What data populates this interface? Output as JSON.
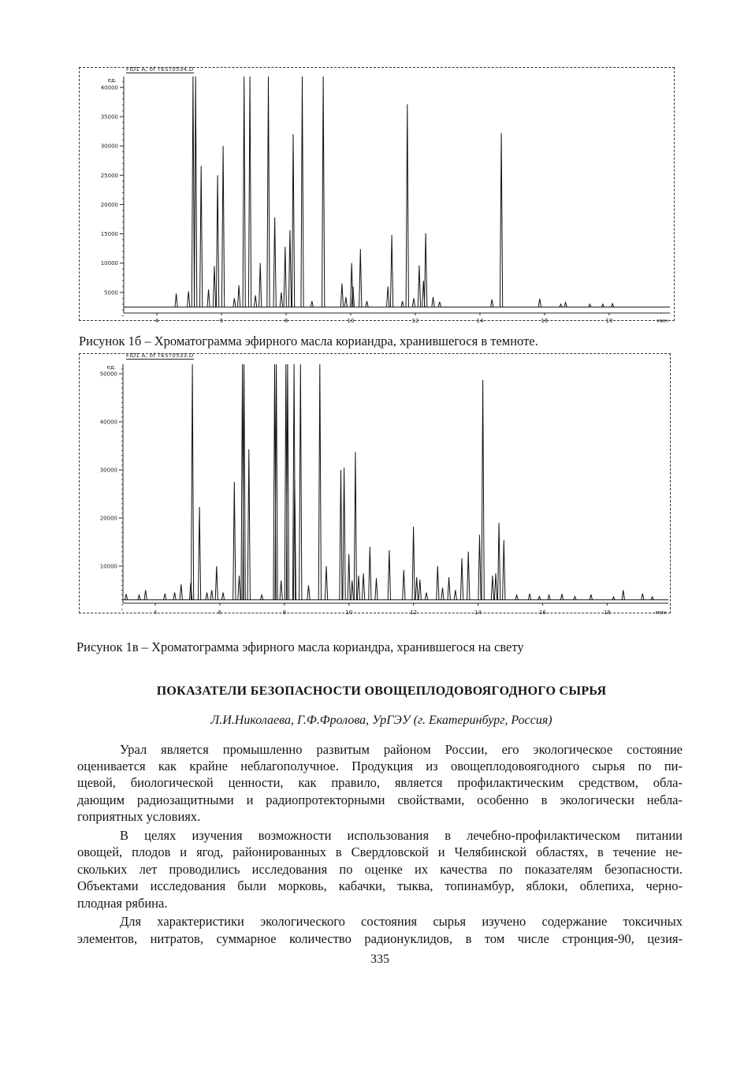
{
  "figure1": {
    "header": "FID1 A, of TEST0534.D",
    "y_unit": "ед.",
    "x_unit": "мин",
    "caption": "Рисунок 1б – Хроматограмма эфирного масла кориандра, хранившегося в темноте."
  },
  "figure2": {
    "header": "FID1 A, of TEST0533.D",
    "y_unit": "ед.",
    "x_unit": "мин",
    "caption": "Рисунок 1в – Хроматограмма эфирного масла кориандра, хранившегося  на свету"
  },
  "heading": "ПОКАЗАТЕЛИ БЕЗОПАСНОСТИ ОВОЩЕПЛОДОВОЯГОДНОГО СЫРЬЯ",
  "authors": "Л.И.Николаева, Г.Ф.Фролова, УрГЭУ (г. Екатеринбург, Россия)",
  "paragraphs": [
    [
      "Урал является промышленно развитым районом России, его экологическое состояние",
      "оценивается как крайне неблагополучное. Продукция из овощеплодовоягодного сырья по пи-",
      "щевой, биологической ценности, как правило, является профилактическим средством, обла-",
      "дающим радиозащитными и радиопротекторными свойствами, особенно в экологически небла-",
      "гоприятных условиях."
    ],
    [
      "В целях изучения возможности использования в лечебно-профилактическом питании",
      "овощей, плодов и ягод, районированных в Свердловской и Челябинской областях, в течение не-",
      "скольких лет проводились исследования по оценке их качества по показателям безопасности.",
      "Объектами исследования были морковь, кабачки, тыква, топинамбур, яблоки, облепиха, черно-",
      "плодная рябина."
    ],
    [
      "Для характеристики экологического состояния сырья изучено содержание токсичных",
      "элементов, нитратов, суммарное количество радионуклидов, в том числе стронция-90, цезия-"
    ]
  ],
  "page_number": "335",
  "chart_data": [
    {
      "type": "line",
      "title": "",
      "xlabel": "мин",
      "ylabel": "ед.",
      "xlim": [
        3.0,
        19.9
      ],
      "ylim": [
        0,
        42000
      ],
      "x_ticks": [
        "4",
        "6",
        "8",
        "10",
        "12",
        "14",
        "16",
        "18"
      ],
      "y_ticks": [
        "5000",
        "10000",
        "15000",
        "20000",
        "25000",
        "30000",
        "35000",
        "40000"
      ],
      "grid": false,
      "baseline": 2500,
      "series": [
        {
          "peaks": [
            [
              4.6,
              4800
            ],
            [
              4.98,
              5200
            ],
            [
              5.12,
              45000
            ],
            [
              5.2,
              45000
            ],
            [
              5.37,
              26600
            ],
            [
              5.6,
              5500
            ],
            [
              5.78,
              9500
            ],
            [
              5.88,
              25000
            ],
            [
              6.05,
              30000
            ],
            [
              6.4,
              4000
            ],
            [
              6.54,
              6200
            ],
            [
              6.7,
              45000
            ],
            [
              6.88,
              45000
            ],
            [
              7.05,
              4500
            ],
            [
              7.2,
              10000
            ],
            [
              7.45,
              45000
            ],
            [
              7.65,
              17800
            ],
            [
              7.85,
              5000
            ],
            [
              7.97,
              12800
            ],
            [
              8.12,
              15600
            ],
            [
              8.22,
              32000
            ],
            [
              8.5,
              45000
            ],
            [
              8.8,
              3500
            ],
            [
              9.15,
              45000
            ],
            [
              9.73,
              6500
            ],
            [
              9.85,
              4200
            ],
            [
              10.03,
              10000
            ],
            [
              10.07,
              6000
            ],
            [
              10.3,
              12400
            ],
            [
              10.5,
              3500
            ],
            [
              11.15,
              6000
            ],
            [
              11.27,
              14800
            ],
            [
              11.6,
              3500
            ],
            [
              11.75,
              37100
            ],
            [
              11.95,
              4000
            ],
            [
              12.12,
              9600
            ],
            [
              12.25,
              7000
            ],
            [
              12.32,
              15100
            ],
            [
              12.55,
              4200
            ],
            [
              12.75,
              3400
            ],
            [
              14.37,
              3800
            ],
            [
              14.66,
              32200
            ],
            [
              15.85,
              3900
            ],
            [
              16.5,
              3000
            ],
            [
              16.65,
              3300
            ],
            [
              17.4,
              3000
            ],
            [
              17.8,
              3000
            ],
            [
              18.1,
              3100
            ]
          ]
        }
      ]
    },
    {
      "type": "line",
      "title": "",
      "xlabel": "мин",
      "ylabel": "ед.",
      "xlim": [
        3.0,
        19.9
      ],
      "ylim": [
        0,
        52000
      ],
      "x_ticks": [
        "4",
        "6",
        "8",
        "10",
        "12",
        "14",
        "16",
        "18"
      ],
      "y_ticks": [
        "10000",
        "20000",
        "30000",
        "40000",
        "50000"
      ],
      "grid": false,
      "baseline": 3000,
      "series": [
        {
          "peaks": [
            [
              3.1,
              4200
            ],
            [
              3.5,
              4000
            ],
            [
              3.7,
              5000
            ],
            [
              4.3,
              4300
            ],
            [
              4.6,
              4500
            ],
            [
              4.8,
              6200
            ],
            [
              5.1,
              6500
            ],
            [
              5.15,
              60000
            ],
            [
              5.37,
              22300
            ],
            [
              5.6,
              4500
            ],
            [
              5.75,
              5000
            ],
            [
              5.9,
              10000
            ],
            [
              6.1,
              4500
            ],
            [
              6.45,
              27500
            ],
            [
              6.6,
              8000
            ],
            [
              6.7,
              60000
            ],
            [
              6.75,
              60000
            ],
            [
              6.9,
              34300
            ],
            [
              7.3,
              4000
            ],
            [
              7.7,
              60000
            ],
            [
              7.75,
              60000
            ],
            [
              7.9,
              7000
            ],
            [
              8.05,
              60000
            ],
            [
              8.1,
              60000
            ],
            [
              8.3,
              60000
            ],
            [
              8.32,
              28000
            ],
            [
              8.5,
              60000
            ],
            [
              8.75,
              6000
            ],
            [
              9.1,
              60000
            ],
            [
              9.3,
              10000
            ],
            [
              9.75,
              30000
            ],
            [
              9.85,
              30500
            ],
            [
              10.0,
              12500
            ],
            [
              10.1,
              7000
            ],
            [
              10.2,
              33700
            ],
            [
              10.3,
              8000
            ],
            [
              10.45,
              8500
            ],
            [
              10.65,
              14000
            ],
            [
              10.85,
              7500
            ],
            [
              11.25,
              13300
            ],
            [
              11.7,
              9200
            ],
            [
              12.0,
              18200
            ],
            [
              12.1,
              7700
            ],
            [
              12.2,
              7200
            ],
            [
              12.4,
              4500
            ],
            [
              12.75,
              10000
            ],
            [
              12.9,
              5500
            ],
            [
              13.1,
              7700
            ],
            [
              13.3,
              5000
            ],
            [
              13.5,
              11600
            ],
            [
              13.7,
              13000
            ],
            [
              14.05,
              16500
            ],
            [
              14.15,
              48700
            ],
            [
              14.45,
              8000
            ],
            [
              14.55,
              8500
            ],
            [
              14.65,
              19000
            ],
            [
              14.8,
              15400
            ],
            [
              15.2,
              4000
            ],
            [
              15.6,
              4300
            ],
            [
              15.9,
              3700
            ],
            [
              16.2,
              4000
            ],
            [
              16.6,
              4200
            ],
            [
              17.0,
              3700
            ],
            [
              17.5,
              4100
            ],
            [
              18.2,
              3600
            ],
            [
              18.5,
              5000
            ],
            [
              19.1,
              4300
            ],
            [
              19.4,
              3600
            ]
          ]
        }
      ]
    }
  ]
}
